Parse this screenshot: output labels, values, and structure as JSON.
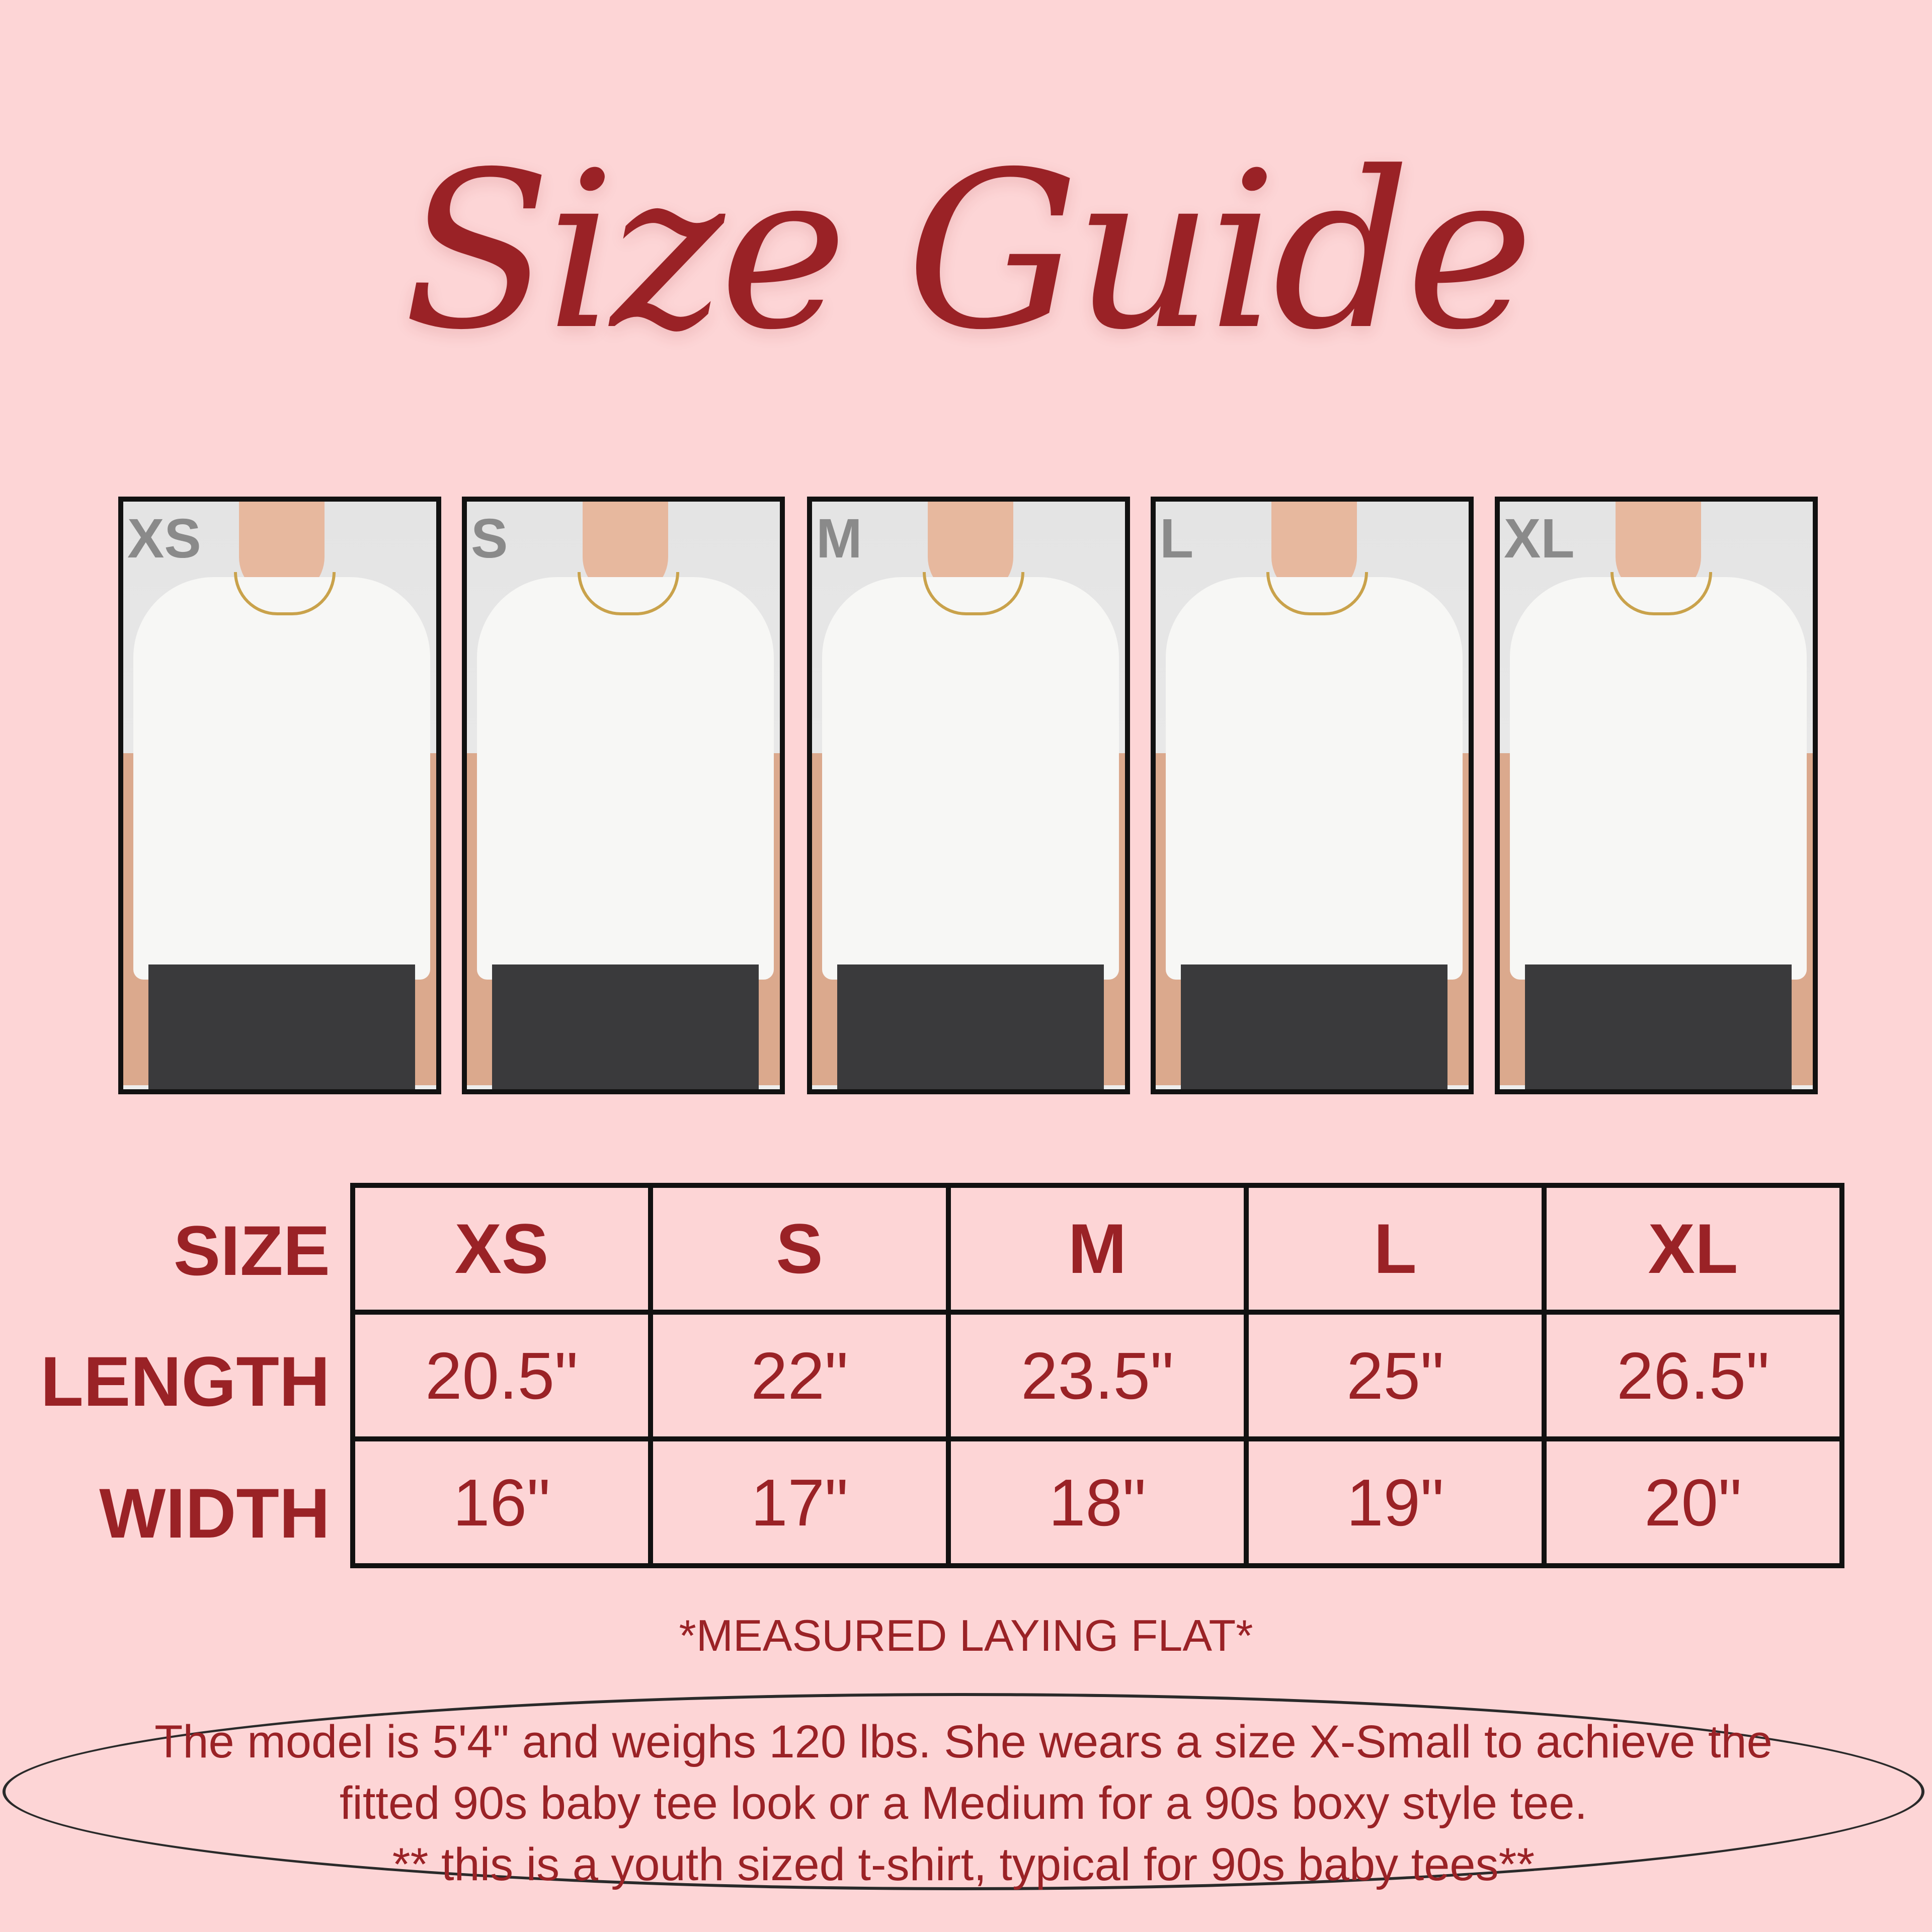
{
  "title": "Size Guide",
  "photos": [
    {
      "label": "XS"
    },
    {
      "label": "S"
    },
    {
      "label": "M"
    },
    {
      "label": "L"
    },
    {
      "label": "XL"
    }
  ],
  "table": {
    "row_labels": [
      "SIZE",
      "LENGTH",
      "WIDTH"
    ],
    "sizes": [
      "XS",
      "S",
      "M",
      "L",
      "XL"
    ],
    "length": [
      "20.5\"",
      "22\"",
      "23.5\"",
      "25\"",
      "26.5\""
    ],
    "width": [
      "16\"",
      "17\"",
      "18\"",
      "19\"",
      "20\""
    ]
  },
  "note": "*MEASURED LAYING FLAT*",
  "model_info": [
    "The model is 5'4\" and weighs 120 lbs. She wears a size X-Small to achieve the",
    "fitted 90s baby tee look or a Medium for a 90s boxy style tee.",
    "** this is a youth sized t-shirt, typical for 90s baby tees**"
  ],
  "colors": {
    "background": "#fdd5d6",
    "accent": "#9a2226",
    "border": "#111111"
  }
}
